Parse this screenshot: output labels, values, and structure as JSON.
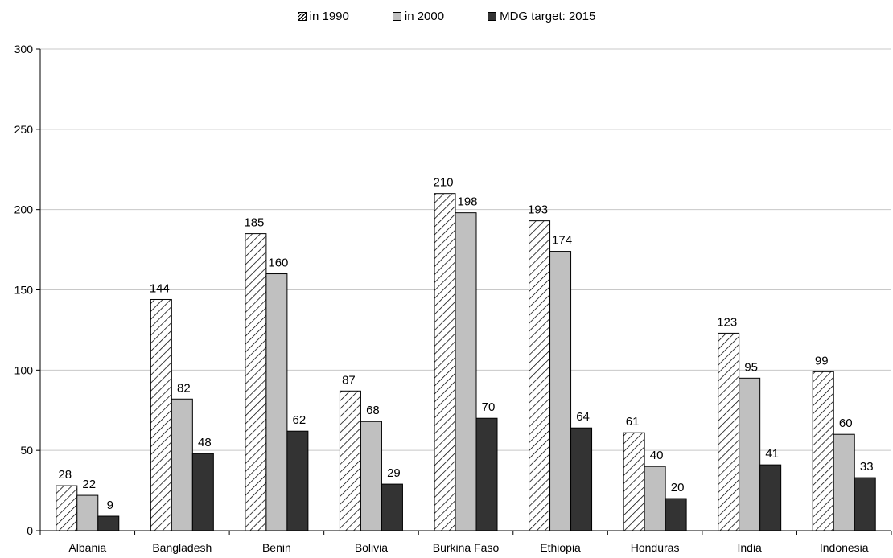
{
  "chart_data": {
    "type": "bar",
    "categories": [
      "Albania",
      "Bangladesh",
      "Benin",
      "Bolivia",
      "Burkina Faso",
      "Ethiopia",
      "Honduras",
      "India",
      "Indonesia"
    ],
    "series": [
      {
        "name": "in 1990",
        "values": [
          28,
          144,
          185,
          87,
          210,
          193,
          61,
          123,
          99
        ],
        "fill": "hatched"
      },
      {
        "name": "in 2000",
        "values": [
          22,
          82,
          160,
          68,
          198,
          174,
          40,
          95,
          60
        ],
        "fill": "#c0c0c0"
      },
      {
        "name": "MDG target: 2015",
        "values": [
          9,
          48,
          62,
          29,
          70,
          64,
          20,
          41,
          33
        ],
        "fill": "#333333"
      }
    ],
    "ylim": [
      0,
      300
    ],
    "yticks": [
      0,
      50,
      100,
      150,
      200,
      250,
      300
    ],
    "grid": true,
    "legend_position": "top-center",
    "data_labels": true
  }
}
